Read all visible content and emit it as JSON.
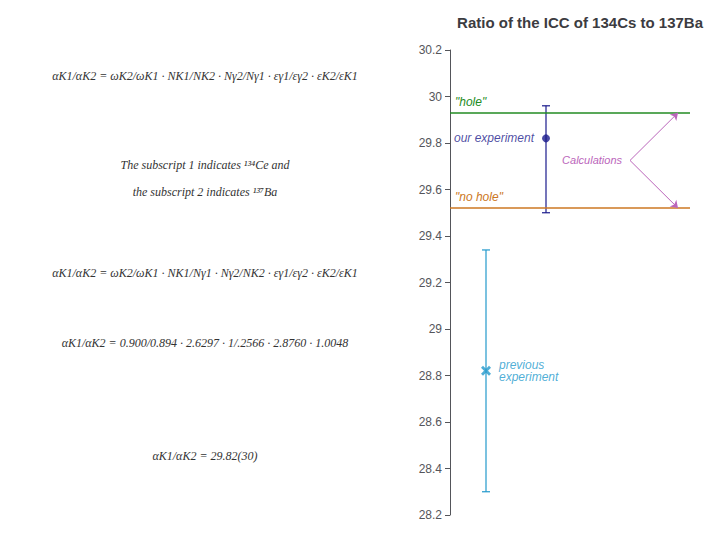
{
  "chart_data": {
    "type": "errorbar",
    "title": "Ratio of the ICC of 134Cs to 137Ba",
    "ylim": [
      28.2,
      30.2
    ],
    "yticks": [
      28.2,
      28.4,
      28.6,
      28.8,
      29,
      29.2,
      29.4,
      29.6,
      29.8,
      30,
      30.2
    ],
    "tick_labels": "y",
    "grid": false,
    "series": [
      {
        "name": "our experiment",
        "color": "#1a1a8c",
        "marker": "o",
        "values": [
          29.82
        ],
        "yerr_up": [
          0.14
        ],
        "yerr_down": [
          0.32
        ]
      },
      {
        "name": "previous\nexperiment",
        "color": "#2299cc",
        "marker": "x",
        "values": [
          28.82
        ],
        "yerr_up": [
          0.52
        ],
        "yerr_down": [
          0.52
        ]
      }
    ],
    "reference_lines": [
      {
        "name": "\"hole\"",
        "value": 29.93,
        "color": "#228B22"
      },
      {
        "name": "\"no hole\"",
        "value": 29.52,
        "color": "#cc7722"
      }
    ],
    "annotations": [
      {
        "text": "αK1/αK2 = ωK2/ωK1 · NK1/NK2 · Nγ2/Nγ1 · εγ1/εγ2 · εK2/εK1"
      },
      {
        "text": "The subscript 1 indicates ¹³⁴Ce and"
      },
      {
        "text": "the subscript 2 indicates ¹³⁷Ba"
      },
      {
        "text": "αK1/αK2 = ωK2/ωK1 · NK1/Nγ1 · Nγ2/NK2 · εγ1/εγ2 · εK2/εK1"
      },
      {
        "text": "αK1/αK2 = 0.900/0.894 · 2.6297 · 1/.2566 · 2.8760 · 1.0048"
      },
      {
        "text": "αK1/αK2 = 29.82(30)"
      },
      {
        "text": "Calculations",
        "color": "#bb66bb",
        "points_to": [
          "\"hole\"",
          "\"no hole\""
        ]
      }
    ]
  }
}
